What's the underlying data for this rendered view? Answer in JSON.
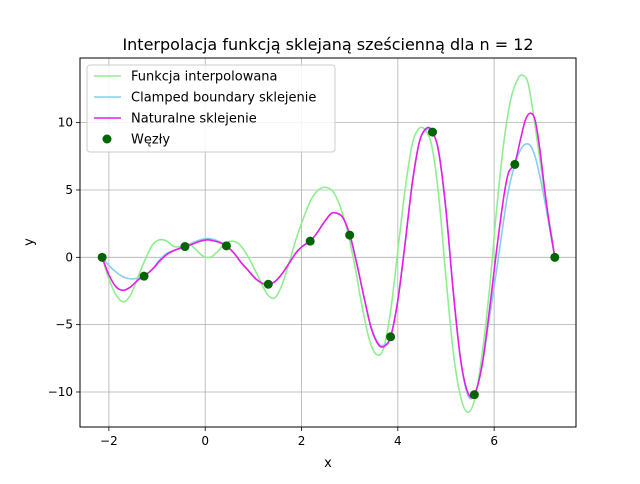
{
  "chart_data": {
    "type": "line",
    "title": "Interpolacja funkcją sklejaną sześcienną dla n = 12",
    "xlabel": "x",
    "ylabel": "y",
    "xlim": [
      -2.6,
      7.7
    ],
    "ylim": [
      -12.6,
      14.8
    ],
    "xticks": [
      -2,
      0,
      2,
      4,
      6
    ],
    "yticks": [
      -10,
      -5,
      0,
      5,
      10
    ],
    "xtick_labels": [
      "−2",
      "0",
      "2",
      "4",
      "6"
    ],
    "ytick_labels": [
      "−10",
      "−5",
      "0",
      "5",
      "10"
    ],
    "grid": true,
    "legend": "top-left",
    "series": [
      {
        "name": "Funkcja interpolowana",
        "color": "#90ee90",
        "kind": "line",
        "x": [
          -2.14,
          -2.0,
          -1.85,
          -1.7,
          -1.55,
          -1.4,
          -1.25,
          -1.1,
          -0.95,
          -0.8,
          -0.65,
          -0.5,
          -0.35,
          -0.2,
          -0.05,
          0.1,
          0.25,
          0.4,
          0.55,
          0.7,
          0.85,
          1.0,
          1.15,
          1.3,
          1.45,
          1.6,
          1.75,
          1.9,
          2.05,
          2.2,
          2.35,
          2.5,
          2.65,
          2.8,
          2.95,
          3.1,
          3.25,
          3.4,
          3.55,
          3.7,
          3.85,
          4.0,
          4.15,
          4.3,
          4.45,
          4.6,
          4.72,
          4.85,
          5.0,
          5.15,
          5.3,
          5.45,
          5.6,
          5.75,
          5.9,
          6.05,
          6.2,
          6.35,
          6.5,
          6.6,
          6.7,
          6.8,
          6.9,
          7.0,
          7.1,
          7.2,
          7.26
        ],
        "y": [
          0.0,
          -1.6,
          -2.8,
          -3.3,
          -2.8,
          -1.5,
          -0.2,
          0.9,
          1.3,
          1.2,
          0.8,
          0.8,
          1.0,
          0.6,
          0.1,
          0.0,
          0.4,
          1.0,
          1.2,
          1.0,
          0.3,
          -0.7,
          -1.8,
          -2.8,
          -3.0,
          -2.0,
          -0.3,
          1.5,
          3.0,
          4.3,
          5.0,
          5.2,
          4.9,
          3.8,
          2.0,
          -0.5,
          -3.5,
          -6.0,
          -7.2,
          -6.8,
          -4.0,
          0.5,
          5.0,
          8.4,
          9.6,
          9.3,
          8.0,
          4.5,
          -1.5,
          -7.0,
          -10.3,
          -11.5,
          -10.5,
          -7.2,
          -2.5,
          3.5,
          8.5,
          11.8,
          13.3,
          13.5,
          13.0,
          11.0,
          8.5,
          6.0,
          3.5,
          1.5,
          0.0
        ]
      },
      {
        "name": "Clamped boundary sklejenie",
        "color": "#87ceeb",
        "kind": "line",
        "x": [
          -2.14,
          -2.0,
          -1.85,
          -1.7,
          -1.55,
          -1.4,
          -1.27,
          -1.1,
          -0.95,
          -0.8,
          -0.65,
          -0.5,
          -0.42,
          -0.25,
          -0.1,
          0.05,
          0.2,
          0.3,
          0.44,
          0.6,
          0.75,
          0.9,
          1.05,
          1.2,
          1.31,
          1.45,
          1.6,
          1.75,
          1.9,
          2.05,
          2.18,
          2.3,
          2.45,
          2.6,
          2.7,
          2.85,
          3.0,
          3.15,
          3.3,
          3.45,
          3.6,
          3.72,
          3.85,
          4.0,
          4.15,
          4.3,
          4.45,
          4.6,
          4.72,
          4.85,
          5.0,
          5.15,
          5.3,
          5.45,
          5.59,
          5.75,
          5.9,
          6.05,
          6.2,
          6.3,
          6.43,
          6.55,
          6.65,
          6.75,
          6.85,
          6.95,
          7.05,
          7.15,
          7.26
        ],
        "y": [
          0.0,
          -0.6,
          -1.1,
          -1.45,
          -1.6,
          -1.55,
          -1.4,
          -0.9,
          -0.2,
          0.3,
          0.5,
          0.7,
          0.8,
          1.1,
          1.3,
          1.4,
          1.3,
          1.15,
          0.85,
          0.3,
          -0.4,
          -1.0,
          -1.6,
          -1.95,
          -2.0,
          -1.8,
          -1.2,
          -0.4,
          0.4,
          0.9,
          1.2,
          1.7,
          2.5,
          3.2,
          3.3,
          3.0,
          1.7,
          -0.5,
          -3.0,
          -5.2,
          -6.4,
          -6.5,
          -5.9,
          -3.2,
          1.0,
          5.5,
          8.6,
          9.5,
          9.3,
          7.8,
          3.5,
          -2.5,
          -7.5,
          -10.2,
          -10.2,
          -8.0,
          -4.5,
          -1.0,
          2.8,
          5.0,
          6.9,
          8.0,
          8.4,
          8.3,
          7.5,
          6.0,
          4.2,
          2.2,
          0.0
        ]
      },
      {
        "name": "Naturalne sklejenie",
        "color": "#e81ce8",
        "kind": "line",
        "x": [
          -2.14,
          -2.0,
          -1.85,
          -1.7,
          -1.55,
          -1.4,
          -1.27,
          -1.1,
          -0.95,
          -0.8,
          -0.65,
          -0.5,
          -0.42,
          -0.25,
          -0.1,
          0.05,
          0.2,
          0.3,
          0.44,
          0.6,
          0.75,
          0.9,
          1.05,
          1.2,
          1.31,
          1.45,
          1.6,
          1.75,
          1.9,
          2.05,
          2.18,
          2.3,
          2.45,
          2.6,
          2.7,
          2.85,
          3.0,
          3.15,
          3.3,
          3.45,
          3.6,
          3.72,
          3.85,
          4.0,
          4.15,
          4.3,
          4.45,
          4.6,
          4.72,
          4.85,
          5.0,
          5.15,
          5.3,
          5.45,
          5.59,
          5.75,
          5.9,
          6.05,
          6.2,
          6.3,
          6.43,
          6.55,
          6.65,
          6.75,
          6.85,
          6.95,
          7.05,
          7.15,
          7.26
        ],
        "y": [
          0.0,
          -1.3,
          -2.2,
          -2.45,
          -2.2,
          -1.7,
          -1.4,
          -0.9,
          -0.3,
          0.2,
          0.5,
          0.7,
          0.8,
          1.0,
          1.2,
          1.3,
          1.2,
          1.1,
          0.85,
          0.3,
          -0.4,
          -1.0,
          -1.6,
          -1.95,
          -2.0,
          -1.8,
          -1.2,
          -0.4,
          0.4,
          0.9,
          1.2,
          1.7,
          2.5,
          3.2,
          3.3,
          3.0,
          1.7,
          -0.5,
          -3.0,
          -5.3,
          -6.5,
          -6.6,
          -5.9,
          -3.2,
          1.0,
          5.5,
          8.6,
          9.6,
          9.3,
          7.8,
          3.5,
          -2.5,
          -7.5,
          -10.0,
          -10.2,
          -8.0,
          -4.0,
          0.5,
          4.5,
          6.3,
          7.0,
          8.8,
          10.2,
          10.7,
          10.2,
          8.0,
          5.0,
          2.4,
          0.0
        ]
      },
      {
        "name": "Węzły",
        "color": "#006400",
        "kind": "scatter",
        "x": [
          -2.14,
          -1.27,
          -0.42,
          0.44,
          1.31,
          2.18,
          3.0,
          3.85,
          4.72,
          5.59,
          6.43,
          7.26
        ],
        "y": [
          0.0,
          -1.4,
          0.8,
          0.85,
          -2.0,
          1.2,
          1.65,
          -5.9,
          9.3,
          -10.2,
          6.9,
          0.0
        ]
      }
    ]
  }
}
